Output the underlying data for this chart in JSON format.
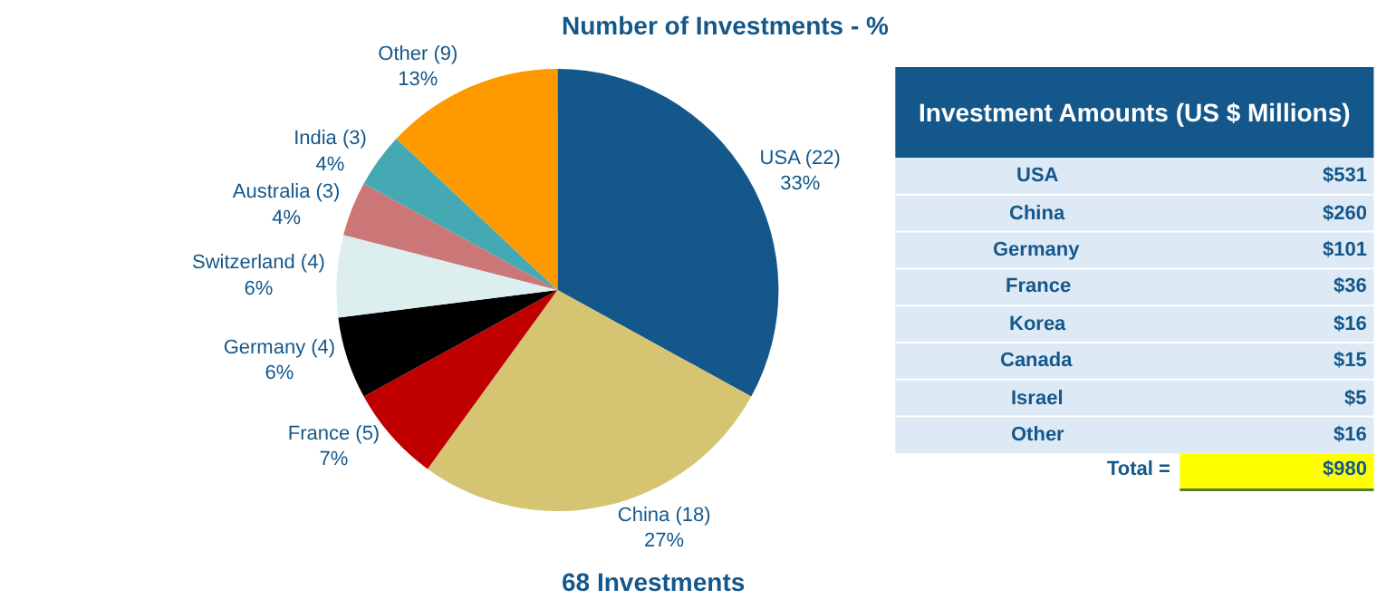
{
  "chart_data": [
    {
      "type": "pie",
      "title": "Number of Investments - %",
      "annotations": [
        "68 Investments"
      ],
      "categories": [
        "USA (22)",
        "China (18)",
        "France (5)",
        "Germany (4)",
        "Switzerland (4)",
        "Australia (3)",
        "India (3)",
        "Other (9)"
      ],
      "values": [
        33,
        27,
        7,
        6,
        6,
        4,
        4,
        13
      ],
      "value_labels": [
        "33%",
        "27%",
        "7%",
        "6%",
        "6%",
        "4%",
        "4%",
        "13%"
      ],
      "colors": [
        "#14578a",
        "#d5c472",
        "#c00000",
        "#000000",
        "#dceeee",
        "#cc7777",
        "#45a9b3",
        "#ff9900"
      ]
    },
    {
      "type": "other",
      "title": "Investment Amounts (US $ Millions)",
      "categories": [
        "USA",
        "China",
        "Germany",
        "France",
        "Korea",
        "Canada",
        "Israel",
        "Other"
      ],
      "value_labels": [
        "$531",
        "$260",
        "$101",
        "$36",
        "$16",
        "$15",
        "$5",
        "$16"
      ],
      "annotations": [
        "Total ="
      ],
      "totals": [
        "$980"
      ]
    }
  ]
}
